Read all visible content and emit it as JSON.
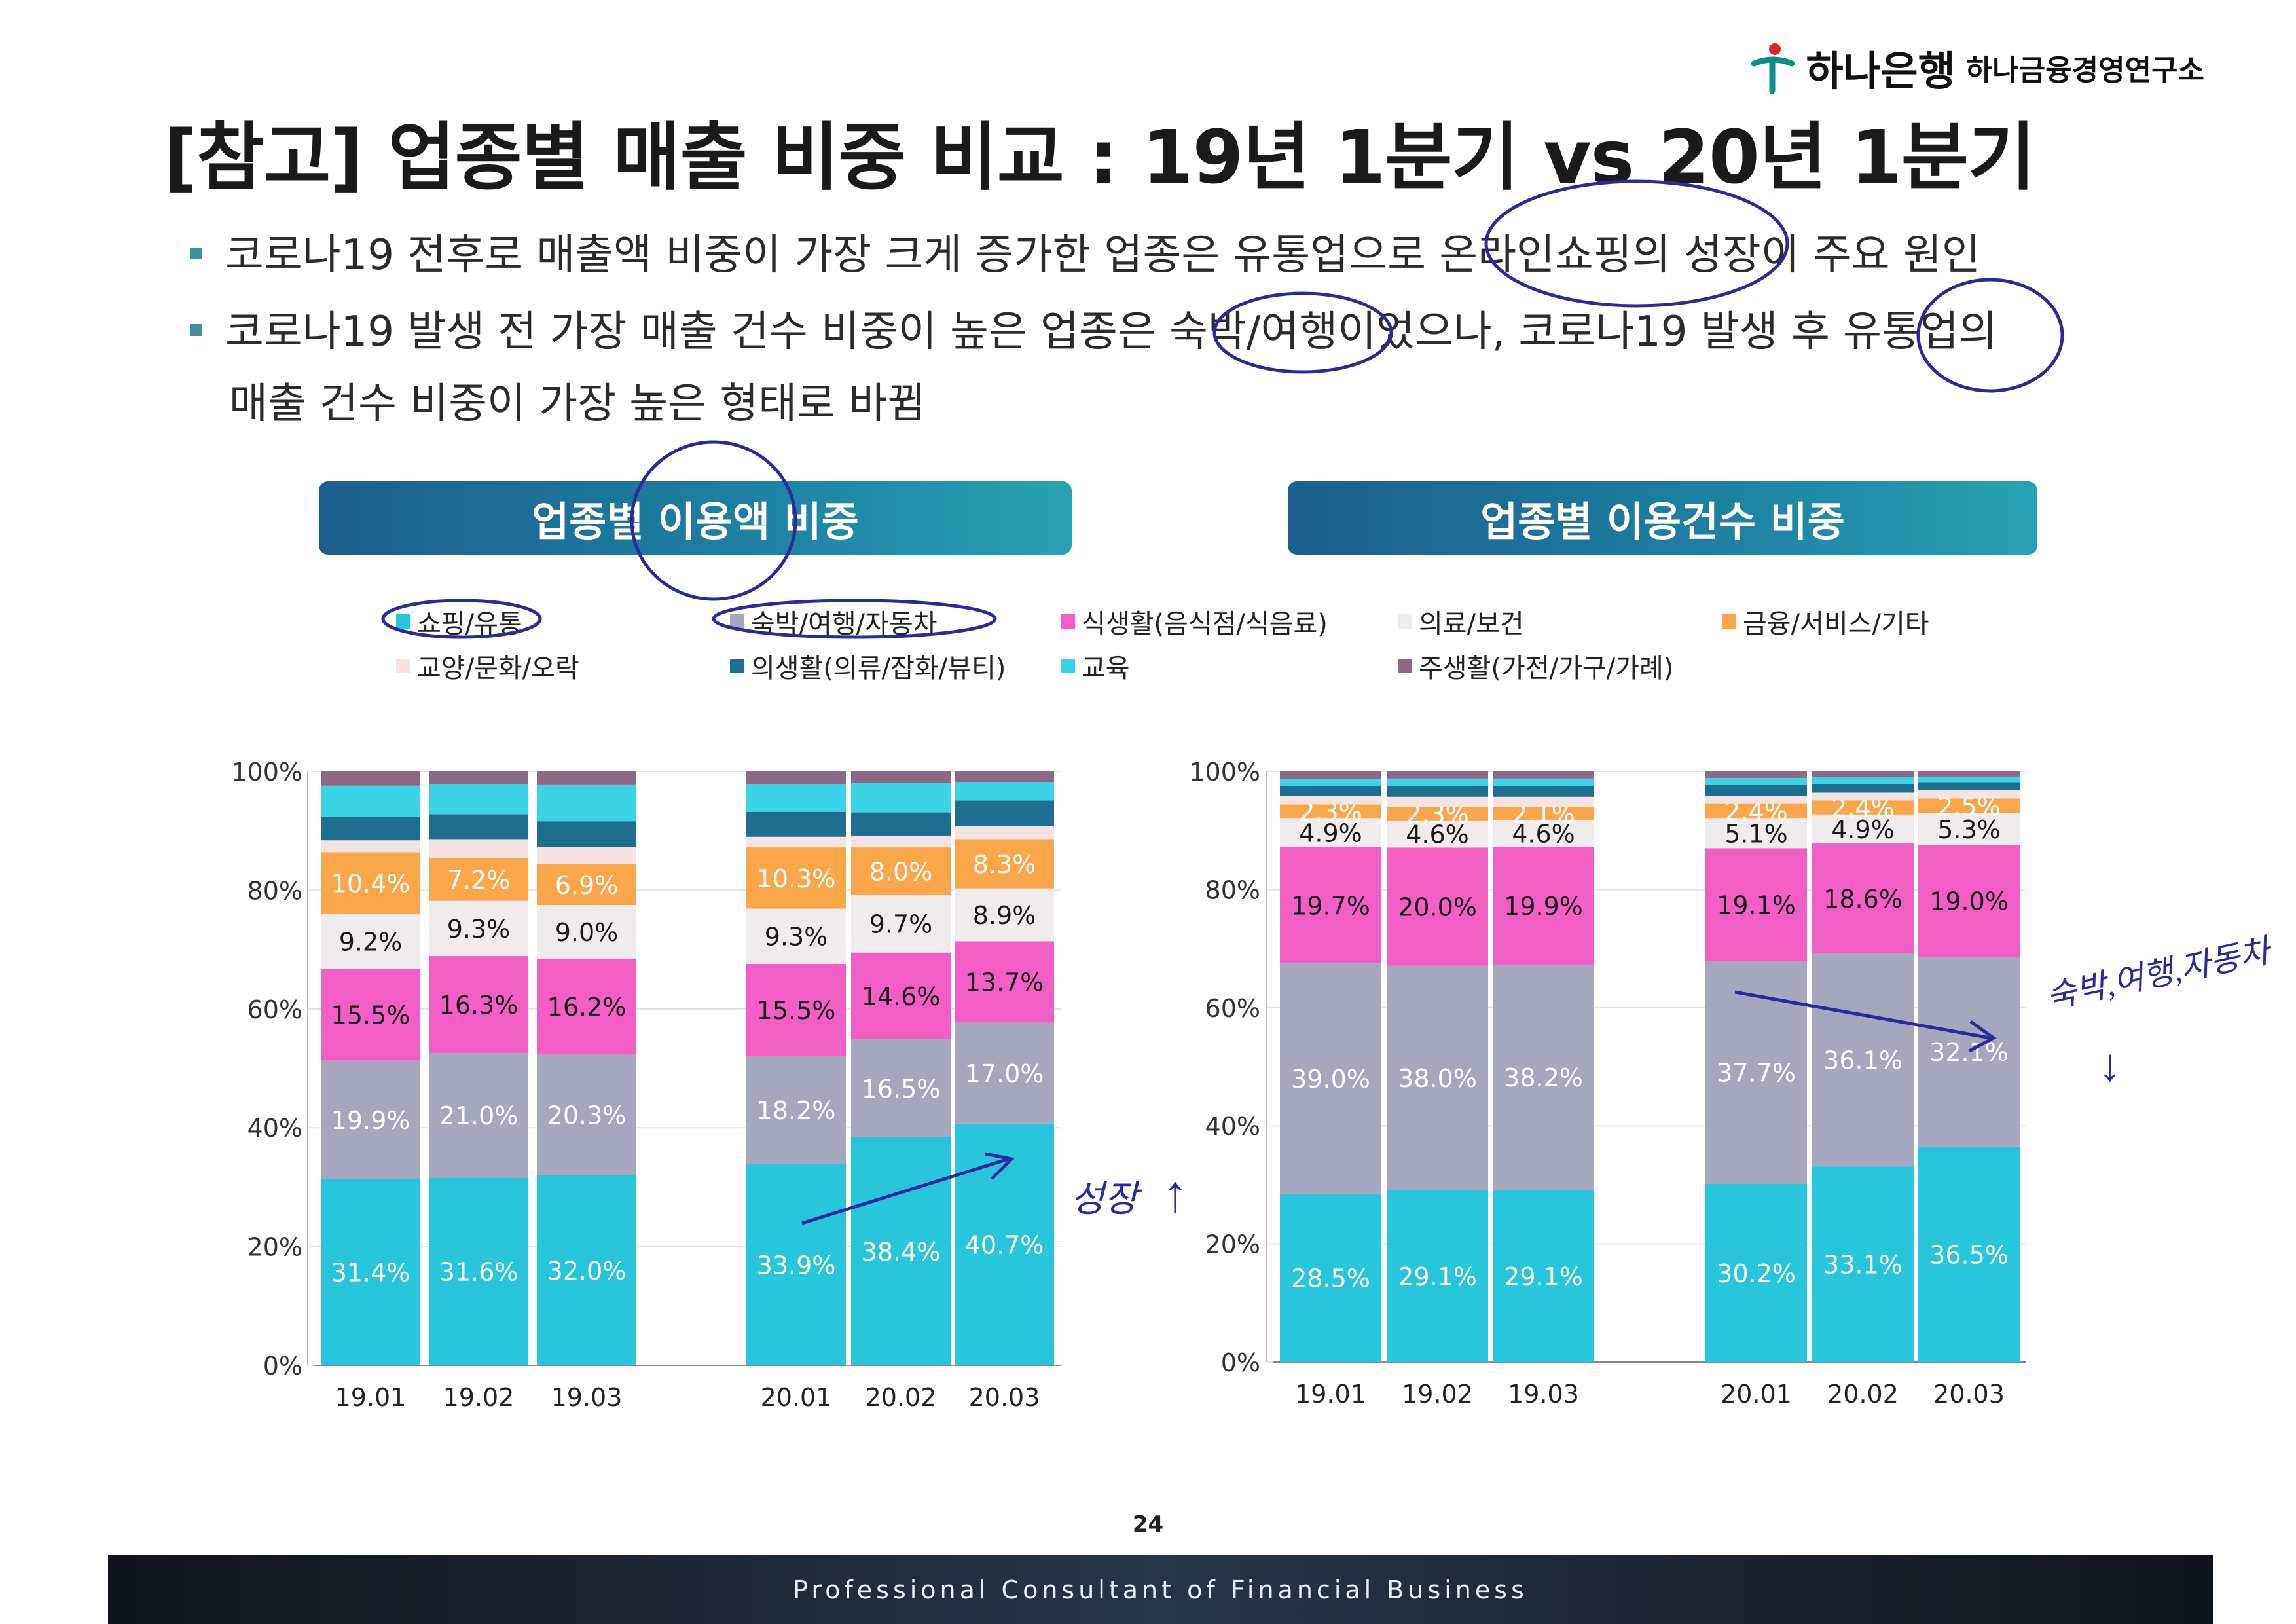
{
  "header": {
    "bank_name": "하나은행",
    "institute": "하나금융경영연구소"
  },
  "title": "[참고] 업종별 매출 비중 비교 : 19년 1분기 vs 20년 1분기",
  "bullets": {
    "b1": "코로나19 전후로 매출액 비중이 가장 크게 증가한 업종은 유통업으로 온라인쇼핑의 성장이 주요 원인",
    "b2_line1": "코로나19 발생 전 가장 매출 건수 비중이 높은 업종은 숙박/여행이었으나, 코로나19 발생 후 유통업의",
    "b2_line2": "매출 건수 비중이 가장 높은 형태로 바뀜"
  },
  "annotations": {
    "note_growth_1": "성장",
    "note_growth_2": "↑",
    "note_right": "숙박,여행,자동차",
    "note_down": "↓"
  },
  "colors": {
    "shopping": "#27c6dc",
    "lodging": "#a5a8bd",
    "food": "#f25fc4",
    "medical": "#f0ecee",
    "finance": "#faa64a",
    "culture": "#f7e2e2",
    "clothing": "#1e6f8f",
    "education": "#3ad4e6",
    "housing": "#8c6a86"
  },
  "legend": [
    {
      "key": "shopping",
      "label": "쇼핑/유통"
    },
    {
      "key": "lodging",
      "label": "숙박/여행/자동차"
    },
    {
      "key": "food",
      "label": "식생활(음식점/식음료)"
    },
    {
      "key": "medical",
      "label": "의료/보건"
    },
    {
      "key": "finance",
      "label": "금융/서비스/기타"
    },
    {
      "key": "culture",
      "label": "교양/문화/오락"
    },
    {
      "key": "clothing",
      "label": "의생활(의류/잡화/뷰티)"
    },
    {
      "key": "education",
      "label": "교육"
    },
    {
      "key": "housing",
      "label": "주생활(가전/가구/가례)"
    }
  ],
  "chart_data": [
    {
      "type": "bar",
      "stacked": true,
      "title": "업종별 이용액 비중",
      "ylim": [
        0,
        100
      ],
      "yticks": [
        "0%",
        "20%",
        "40%",
        "60%",
        "80%",
        "100%"
      ],
      "categories": [
        "19.01",
        "19.02",
        "19.03",
        "20.01",
        "20.02",
        "20.03"
      ],
      "series": [
        {
          "name": "쇼핑/유통",
          "key": "shopping",
          "values": [
            31.4,
            31.6,
            32.0,
            33.9,
            38.4,
            40.7
          ],
          "labels": [
            "31.4%",
            "31.6%",
            "32.0%",
            "33.9%",
            "38.4%",
            "40.7%"
          ]
        },
        {
          "name": "숙박/여행/자동차",
          "key": "lodging",
          "values": [
            19.9,
            21.0,
            20.3,
            18.2,
            16.5,
            17.0
          ],
          "labels": [
            "19.9%",
            "21.0%",
            "20.3%",
            "18.2%",
            "16.5%",
            "17.0%"
          ]
        },
        {
          "name": "식생활(음식점/식음료)",
          "key": "food",
          "values": [
            15.5,
            16.3,
            16.2,
            15.5,
            14.6,
            13.7
          ],
          "labels": [
            "15.5%",
            "16.3%",
            "16.2%",
            "15.5%",
            "14.6%",
            "13.7%"
          ]
        },
        {
          "name": "의료/보건",
          "key": "medical",
          "values": [
            9.2,
            9.3,
            9.0,
            9.3,
            9.7,
            8.9
          ],
          "labels": [
            "9.2%",
            "9.3%",
            "9.0%",
            "9.3%",
            "9.7%",
            "8.9%"
          ]
        },
        {
          "name": "금융/서비스/기타",
          "key": "finance",
          "values": [
            10.4,
            7.2,
            6.9,
            10.3,
            8.0,
            8.3
          ],
          "labels": [
            "10.4%",
            "7.2%",
            "6.9%",
            "10.3%",
            "8.0%",
            "8.3%"
          ]
        },
        {
          "name": "교양/문화/오락",
          "key": "culture",
          "values": [
            2.0,
            3.2,
            2.9,
            1.8,
            2.0,
            2.2
          ]
        },
        {
          "name": "의생활(의류/잡화/뷰티)",
          "key": "clothing",
          "values": [
            4.0,
            4.2,
            4.3,
            4.2,
            3.9,
            4.3
          ]
        },
        {
          "name": "교육",
          "key": "education",
          "values": [
            5.2,
            5.0,
            6.1,
            4.7,
            5.0,
            3.1
          ]
        },
        {
          "name": "주생활(가전/가구/가례)",
          "key": "housing",
          "values": [
            2.4,
            2.2,
            2.3,
            2.1,
            1.9,
            1.8
          ]
        }
      ]
    },
    {
      "type": "bar",
      "stacked": true,
      "title": "업종별 이용건수 비중",
      "ylim": [
        0,
        100
      ],
      "yticks": [
        "0%",
        "20%",
        "40%",
        "60%",
        "80%",
        "100%"
      ],
      "categories": [
        "19.01",
        "19.02",
        "19.03",
        "20.01",
        "20.02",
        "20.03"
      ],
      "series": [
        {
          "name": "쇼핑/유통",
          "key": "shopping",
          "values": [
            28.5,
            29.1,
            29.1,
            30.2,
            33.1,
            36.5
          ],
          "labels": [
            "28.5%",
            "29.1%",
            "29.1%",
            "30.2%",
            "33.1%",
            "36.5%"
          ]
        },
        {
          "name": "숙박/여행/자동차",
          "key": "lodging",
          "values": [
            39.0,
            38.0,
            38.2,
            37.7,
            36.1,
            32.1
          ],
          "labels": [
            "39.0%",
            "38.0%",
            "38.2%",
            "37.7%",
            "36.1%",
            "32.1%"
          ]
        },
        {
          "name": "식생활(음식점/식음료)",
          "key": "food",
          "values": [
            19.7,
            20.0,
            19.9,
            19.1,
            18.6,
            19.0
          ],
          "labels": [
            "19.7%",
            "20.0%",
            "19.9%",
            "19.1%",
            "18.6%",
            "19.0%"
          ]
        },
        {
          "name": "의료/보건",
          "key": "medical",
          "values": [
            4.9,
            4.6,
            4.6,
            5.1,
            4.9,
            5.3
          ],
          "labels": [
            "4.9%",
            "4.6%",
            "4.6%",
            "5.1%",
            "4.9%",
            "5.3%"
          ]
        },
        {
          "name": "금융/서비스/기타",
          "key": "finance",
          "values": [
            2.3,
            2.3,
            2.1,
            2.4,
            2.4,
            2.5
          ],
          "labels": [
            "2.3%",
            "2.3%",
            "2.1%",
            "2.4%",
            "2.4%",
            "2.5%"
          ]
        },
        {
          "name": "교양/문화/오락",
          "key": "culture",
          "values": [
            1.5,
            1.7,
            1.8,
            1.4,
            1.3,
            1.4
          ]
        },
        {
          "name": "의생활(의류/잡화/뷰티)",
          "key": "clothing",
          "values": [
            1.6,
            1.8,
            1.8,
            1.8,
            1.5,
            1.4
          ]
        },
        {
          "name": "교육",
          "key": "education",
          "values": [
            1.2,
            1.3,
            1.3,
            1.2,
            1.1,
            0.8
          ]
        },
        {
          "name": "주생활(가전/가구/가례)",
          "key": "housing",
          "values": [
            1.3,
            1.2,
            1.2,
            1.1,
            1.0,
            1.0
          ]
        }
      ]
    }
  ],
  "page_number": "24",
  "footer": "Professional Consultant of Financial Business"
}
